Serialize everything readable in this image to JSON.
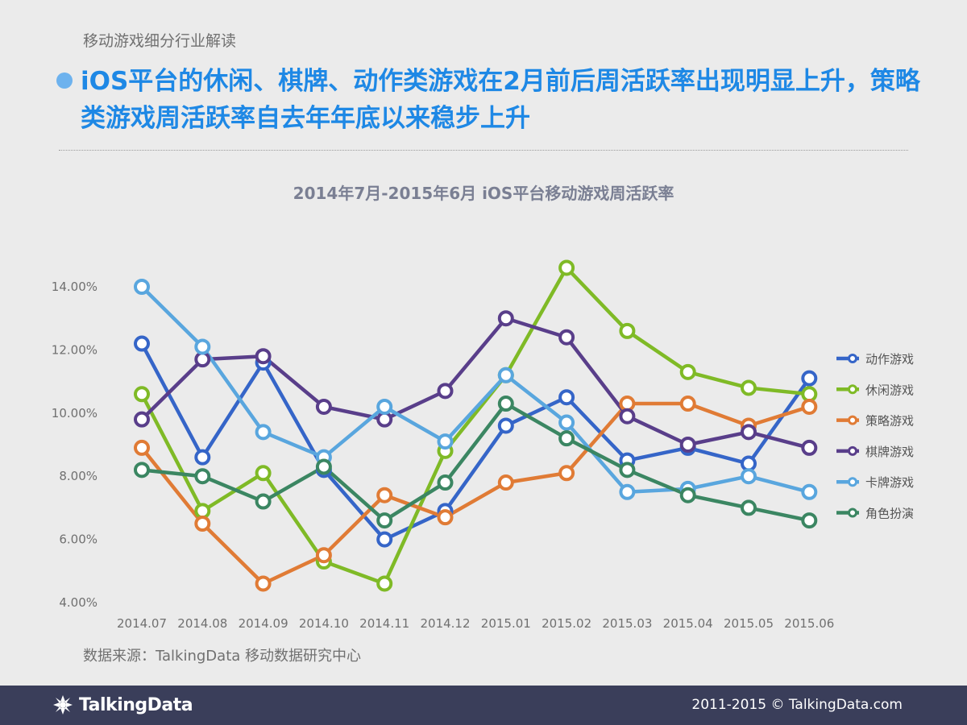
{
  "header": {
    "section_label": "移动游戏细分行业解读",
    "headline": "iOS平台的休闲、棋牌、动作类游戏在2月前后周活跃率出现明显上升，策略类游戏周活跃率自去年年底以来稳步上升"
  },
  "chart_data": {
    "type": "line",
    "title": "2014年7月-2015年6月 iOS平台移动游戏周活跃率",
    "xlabel": "",
    "ylabel": "",
    "categories": [
      "2014.07",
      "2014.08",
      "2014.09",
      "2014.10",
      "2014.11",
      "2014.12",
      "2015.01",
      "2015.02",
      "2015.03",
      "2015.04",
      "2015.05",
      "2015.06"
    ],
    "y_ticks": [
      "4.00%",
      "6.00%",
      "8.00%",
      "10.00%",
      "12.00%",
      "14.00%"
    ],
    "ylim": [
      4,
      14.6
    ],
    "grid": false,
    "legend_position": "right",
    "series": [
      {
        "name": "动作游戏",
        "color": "#3565c8",
        "values": [
          12.2,
          8.6,
          11.6,
          8.2,
          6.0,
          6.9,
          9.6,
          10.5,
          8.5,
          8.9,
          8.4,
          11.1
        ]
      },
      {
        "name": "休闲游戏",
        "color": "#7fba26",
        "values": [
          10.6,
          6.9,
          8.1,
          5.3,
          4.6,
          8.8,
          11.2,
          14.6,
          12.6,
          11.3,
          10.8,
          10.6
        ]
      },
      {
        "name": "策略游戏",
        "color": "#e07b35",
        "values": [
          8.9,
          6.5,
          4.6,
          5.5,
          7.4,
          6.7,
          7.8,
          8.1,
          10.3,
          10.3,
          9.6,
          10.2
        ]
      },
      {
        "name": "棋牌游戏",
        "color": "#593e8a",
        "values": [
          9.8,
          11.7,
          11.8,
          10.2,
          9.8,
          10.7,
          13.0,
          12.4,
          9.9,
          9.0,
          9.4,
          8.9
        ]
      },
      {
        "name": "卡牌游戏",
        "color": "#59a6de",
        "values": [
          14.0,
          12.1,
          9.4,
          8.6,
          10.2,
          9.1,
          11.2,
          9.7,
          7.5,
          7.6,
          8.0,
          7.5
        ]
      },
      {
        "name": "角色扮演",
        "color": "#3b8662",
        "values": [
          8.2,
          8.0,
          7.2,
          8.3,
          6.6,
          7.8,
          10.3,
          9.2,
          8.2,
          7.4,
          7.0,
          6.6
        ]
      }
    ]
  },
  "footer": {
    "source": "数据来源：TalkingData 移动数据研究中心",
    "logo_text": "TalkingData",
    "copyright": "2011-2015 © TalkingData.com",
    "colors": {
      "bar": "#3a3e5a",
      "accent": "#1e88e5"
    }
  }
}
